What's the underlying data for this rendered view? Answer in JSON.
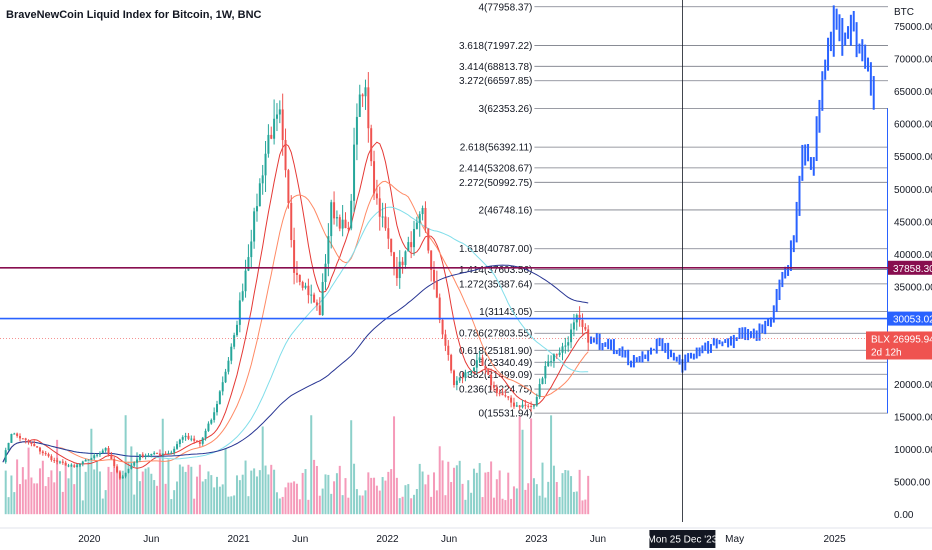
{
  "header": {
    "title": "BraveNewCoin Liquid Index for Bitcoin, 1W, BNC"
  },
  "colors": {
    "up": "#26a69a",
    "down": "#ef5350",
    "projection": "#2962ff",
    "resistance": "#880e4f",
    "support": "#2962ff",
    "ma1": "#e53935",
    "ma2": "#ff8a65",
    "ma3": "#80deea",
    "ma4": "#283593",
    "fib_line": "#787b86",
    "vol_up": "#80cbc4",
    "vol_down": "#f48fb1",
    "crosshair": "#131722"
  },
  "chart_data": {
    "type": "candlestick",
    "title": "BraveNewCoin Liquid Index for Bitcoin, 1W, BNC",
    "currency": "BTC",
    "ylim": [
      -1200,
      79000
    ],
    "y_ticks": [
      0,
      5000,
      10000,
      15000,
      20000,
      25000,
      30000,
      35000,
      40000,
      45000,
      50000,
      55000,
      60000,
      65000,
      70000,
      75000
    ],
    "y_tick_labels": [
      "0.00",
      "5000.00",
      "10000.00",
      "15000.00",
      "20000.00",
      "25000.00",
      "30000.00",
      "35000.00",
      "40000.00",
      "45000.00",
      "50000.00",
      "55000.00",
      "60000.00",
      "65000.00",
      "70000.00",
      "75000.00"
    ],
    "x_range": [
      "2019-05-27",
      "2025-05-12"
    ],
    "x_ticks": [
      {
        "label": "2020",
        "date": "2020-01-01"
      },
      {
        "label": "Jun",
        "date": "2020-06-01"
      },
      {
        "label": "2021",
        "date": "2021-01-01"
      },
      {
        "label": "Jun",
        "date": "2021-06-01"
      },
      {
        "label": "2022",
        "date": "2022-01-01"
      },
      {
        "label": "Jun",
        "date": "2022-06-01"
      },
      {
        "label": "2023",
        "date": "2023-01-01"
      },
      {
        "label": "Jun",
        "date": "2023-06-01"
      },
      {
        "label": "May",
        "date": "2024-05-01"
      },
      {
        "label": "2025",
        "date": "2025-01-01"
      }
    ],
    "crosshair": {
      "date": "2023-12-25",
      "label": "Mon 25 Dec '23"
    },
    "fib_levels": [
      {
        "label": "0(15531.94)",
        "value": 15531.94
      },
      {
        "label": "0.236(19224.75)",
        "value": 19224.75
      },
      {
        "label": "0.382(21499.09)",
        "value": 21499.09
      },
      {
        "label": "0.5(23340.49)",
        "value": 23340.49
      },
      {
        "label": "0.618(25181.90)",
        "value": 25181.9
      },
      {
        "label": "0.786(27803.55)",
        "value": 27803.55
      },
      {
        "label": "1(31143.05)",
        "value": 31143.05
      },
      {
        "label": "1.272(35387.64)",
        "value": 35387.64
      },
      {
        "label": "1.414(37603.56)",
        "value": 37603.56
      },
      {
        "label": "1.618(40787.00)",
        "value": 40787.0
      },
      {
        "label": "2(46748.16)",
        "value": 46748.16
      },
      {
        "label": "2.272(50992.75)",
        "value": 50992.75
      },
      {
        "label": "2.414(53208.67)",
        "value": 53208.67
      },
      {
        "label": "2.618(56392.11)",
        "value": 56392.11
      },
      {
        "label": "3(62353.26)",
        "value": 62353.26
      },
      {
        "label": "3.272(66597.85)",
        "value": 66597.85
      },
      {
        "label": "3.414(68813.78)",
        "value": 68813.78
      },
      {
        "label": "3.618(71997.22)",
        "value": 71997.22
      },
      {
        "label": "4(77958.37)",
        "value": 77958.37
      }
    ],
    "horizontal_lines": [
      {
        "name": "resistance",
        "value": 37858.3,
        "label": "37858.30"
      },
      {
        "name": "support",
        "value": 30053.02,
        "label": "30053.02"
      }
    ],
    "price_badge": {
      "symbol": "BLX",
      "value": "26995.94",
      "countdown": "2d 12h"
    },
    "price_keypoints": [
      [
        "2019-06-03",
        8200
      ],
      [
        "2019-06-24",
        12500
      ],
      [
        "2019-08-05",
        11000
      ],
      [
        "2019-10-07",
        8200
      ],
      [
        "2019-11-25",
        7200
      ],
      [
        "2020-01-13",
        8900
      ],
      [
        "2020-02-10",
        10200
      ],
      [
        "2020-03-16",
        5400
      ],
      [
        "2020-05-04",
        9000
      ],
      [
        "2020-07-20",
        9500
      ],
      [
        "2020-08-17",
        12000
      ],
      [
        "2020-09-28",
        10800
      ],
      [
        "2020-11-02",
        15500
      ],
      [
        "2020-12-21",
        27000
      ],
      [
        "2021-01-11",
        35000
      ],
      [
        "2021-02-15",
        48000
      ],
      [
        "2021-03-15",
        58000
      ],
      [
        "2021-04-12",
        61000
      ],
      [
        "2021-05-17",
        38000
      ],
      [
        "2021-07-19",
        31000
      ],
      [
        "2021-08-16",
        47000
      ],
      [
        "2021-09-27",
        43000
      ],
      [
        "2021-10-18",
        62000
      ],
      [
        "2021-11-08",
        65000
      ],
      [
        "2021-11-29",
        50000
      ],
      [
        "2022-01-24",
        37000
      ],
      [
        "2022-03-28",
        46000
      ],
      [
        "2022-05-09",
        30000
      ],
      [
        "2022-06-13",
        20000
      ],
      [
        "2022-08-15",
        23500
      ],
      [
        "2022-09-19",
        19300
      ],
      [
        "2022-11-07",
        16800
      ],
      [
        "2022-12-26",
        16500
      ],
      [
        "2023-01-23",
        23000
      ],
      [
        "2023-03-13",
        26000
      ],
      [
        "2023-04-10",
        30000
      ],
      [
        "2023-05-08",
        27000
      ]
    ],
    "projection_keypoints": [
      [
        "2023-05-08",
        27200
      ],
      [
        "2023-06-05",
        26500
      ],
      [
        "2023-07-10",
        25500
      ],
      [
        "2023-08-14",
        23500
      ],
      [
        "2023-09-25",
        24000
      ],
      [
        "2023-10-30",
        26500
      ],
      [
        "2023-12-25",
        22800
      ],
      [
        "2024-02-12",
        25500
      ],
      [
        "2024-04-08",
        26000
      ],
      [
        "2024-05-20",
        28000
      ],
      [
        "2024-06-24",
        27500
      ],
      [
        "2024-07-29",
        31000
      ],
      [
        "2024-08-19",
        35000
      ],
      [
        "2024-09-09",
        39000
      ],
      [
        "2024-09-30",
        46000
      ],
      [
        "2024-10-14",
        55000
      ],
      [
        "2024-11-04",
        52000
      ],
      [
        "2024-11-25",
        62000
      ],
      [
        "2024-12-09",
        70000
      ],
      [
        "2024-12-30",
        75000
      ],
      [
        "2025-02-10",
        74000
      ],
      [
        "2025-03-10",
        70000
      ],
      [
        "2025-04-07",
        64000
      ]
    ],
    "moving_averages": [
      {
        "name": "ma1",
        "period": 10
      },
      {
        "name": "ma2",
        "period": 20
      },
      {
        "name": "ma3",
        "period": 50
      },
      {
        "name": "ma4",
        "period": 100
      }
    ],
    "volume_scale_max": 12000
  }
}
